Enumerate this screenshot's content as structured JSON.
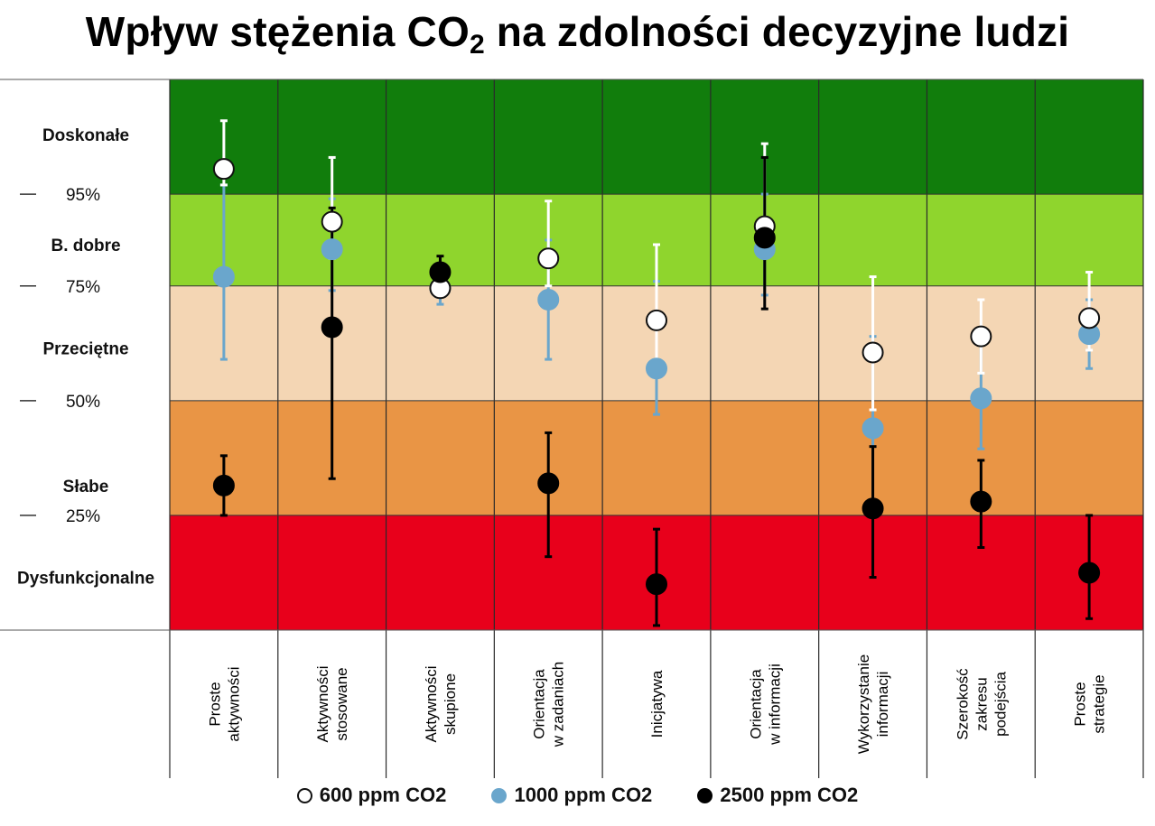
{
  "chart_data": {
    "type": "scatter",
    "title_main": "Wpływ stężenia CO",
    "title_sub": "2",
    "title_rest": " na zdolności decyzyjne ludzi",
    "categories": [
      [
        "Proste",
        "aktywności"
      ],
      [
        "Aktywności",
        "stosowane"
      ],
      [
        "Aktywności",
        "skupione"
      ],
      [
        "Orientacja",
        "w zadaniach"
      ],
      [
        "Inicjatywa"
      ],
      [
        "Orientacja",
        "w informacji"
      ],
      [
        "Wykorzystanie",
        "informacji"
      ],
      [
        "Szerokość",
        "zakresu",
        "podejścia"
      ],
      [
        "Proste",
        "strategie"
      ]
    ],
    "ylim": [
      0,
      120
    ],
    "y_ticks": [
      {
        "value": 25,
        "label": "25%"
      },
      {
        "value": 50,
        "label": "50%"
      },
      {
        "value": 75,
        "label": "75%"
      },
      {
        "value": 95,
        "label": "95%"
      }
    ],
    "bands": [
      {
        "from": 95,
        "to": 120,
        "label": "Doskonałe",
        "label_y": 108,
        "color": "#117d0c"
      },
      {
        "from": 75,
        "to": 95,
        "label": "B. dobre",
        "label_y": 84,
        "color": "#8fd52d"
      },
      {
        "from": 50,
        "to": 75,
        "label": "Przeciętne",
        "label_y": 61.5,
        "color": "#f4d6b4"
      },
      {
        "from": 25,
        "to": 50,
        "label": "Słabe",
        "label_y": 31.5,
        "color": "#e99545"
      },
      {
        "from": 0,
        "to": 25,
        "label": "Dysfunkcjonalne",
        "label_y": 11.5,
        "color": "#e8001b"
      }
    ],
    "series": [
      {
        "name": "600 ppm CO2",
        "color": "#ffffff",
        "stroke": "#111111",
        "error_color": "#ffffff",
        "values": [
          100.5,
          89,
          74.5,
          81,
          67.5,
          88,
          60.5,
          64,
          68
        ],
        "err_low": [
          97,
          81,
          74,
          75,
          57,
          83,
          48,
          56,
          61
        ],
        "err_high": [
          111,
          103,
          74.8,
          93.5,
          84,
          106,
          77,
          72,
          78
        ]
      },
      {
        "name": "1000 ppm CO2",
        "color": "#6aa6cc",
        "stroke": "#6aa6cc",
        "error_color": "#6aa6cc",
        "values": [
          77,
          83,
          74.5,
          72,
          57,
          83,
          44,
          50.5,
          64.5
        ],
        "err_low": [
          59,
          74,
          71,
          59,
          47,
          73,
          27,
          39.5,
          57
        ],
        "err_high": [
          97,
          94,
          79,
          85,
          76,
          95,
          64,
          63,
          72
        ]
      },
      {
        "name": "2500 ppm CO2",
        "color": "#000000",
        "stroke": "#000000",
        "error_color": "#000000",
        "values": [
          31.5,
          66,
          78,
          32,
          10,
          85.5,
          26.5,
          28,
          12.5
        ],
        "err_low": [
          25,
          33,
          79,
          16,
          1,
          70,
          11.5,
          18,
          2.5
        ],
        "err_high": [
          38,
          92,
          81.5,
          43,
          22,
          103,
          40,
          37,
          25
        ]
      }
    ]
  },
  "legend": [
    {
      "label": "600 ppm CO2",
      "color": "#ffffff",
      "stroke": "#111111"
    },
    {
      "label": "1000 ppm CO2",
      "color": "#6aa6cc",
      "stroke": "#6aa6cc"
    },
    {
      "label": "2500 ppm CO2",
      "color": "#000000",
      "stroke": "#000000"
    }
  ]
}
